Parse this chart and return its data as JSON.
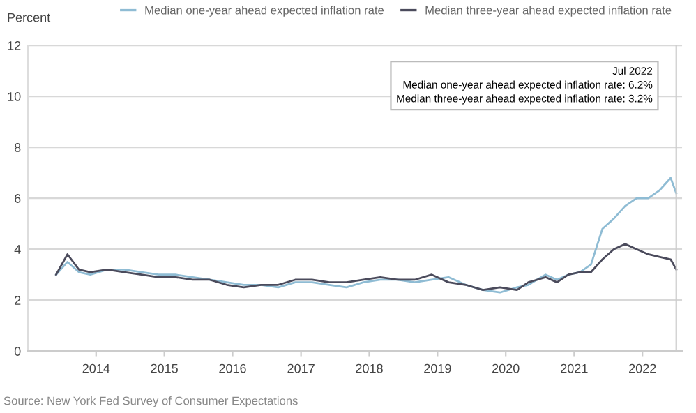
{
  "chart_data": {
    "type": "line",
    "ylabel": "Percent",
    "x": [
      "2013-06",
      "2013-08",
      "2013-10",
      "2013-12",
      "2014-03",
      "2014-06",
      "2014-09",
      "2014-12",
      "2015-03",
      "2015-06",
      "2015-09",
      "2015-12",
      "2016-03",
      "2016-06",
      "2016-09",
      "2016-12",
      "2017-03",
      "2017-06",
      "2017-09",
      "2017-12",
      "2018-03",
      "2018-06",
      "2018-09",
      "2018-12",
      "2019-03",
      "2019-06",
      "2019-09",
      "2019-12",
      "2020-03",
      "2020-05",
      "2020-08",
      "2020-10",
      "2020-12",
      "2021-02",
      "2021-04",
      "2021-06",
      "2021-08",
      "2021-10",
      "2021-12",
      "2022-02",
      "2022-04",
      "2022-06",
      "2022-07"
    ],
    "series": [
      {
        "name": "Median one-year ahead expected inflation rate",
        "color": "#8fbcd4",
        "values": [
          3.0,
          3.5,
          3.1,
          3.0,
          3.2,
          3.2,
          3.1,
          3.0,
          3.0,
          2.9,
          2.8,
          2.7,
          2.6,
          2.6,
          2.5,
          2.7,
          2.7,
          2.6,
          2.5,
          2.7,
          2.8,
          2.8,
          2.7,
          2.8,
          2.9,
          2.6,
          2.4,
          2.3,
          2.5,
          2.6,
          3.0,
          2.8,
          3.0,
          3.1,
          3.4,
          4.8,
          5.2,
          5.7,
          6.0,
          6.0,
          6.3,
          6.8,
          6.2
        ]
      },
      {
        "name": "Median three-year ahead expected inflation rate",
        "color": "#4b4b5c",
        "values": [
          3.0,
          3.8,
          3.2,
          3.1,
          3.2,
          3.1,
          3.0,
          2.9,
          2.9,
          2.8,
          2.8,
          2.6,
          2.5,
          2.6,
          2.6,
          2.8,
          2.8,
          2.7,
          2.7,
          2.8,
          2.9,
          2.8,
          2.8,
          3.0,
          2.7,
          2.6,
          2.4,
          2.5,
          2.4,
          2.7,
          2.9,
          2.7,
          3.0,
          3.1,
          3.1,
          3.6,
          4.0,
          4.2,
          4.0,
          3.8,
          3.7,
          3.6,
          3.2
        ]
      }
    ],
    "xlim": [
      "2013-01",
      "2022-08"
    ],
    "xticks": [
      "2014",
      "2015",
      "2016",
      "2017",
      "2018",
      "2019",
      "2020",
      "2021",
      "2022"
    ],
    "ylim": [
      0,
      12
    ],
    "yticks": [
      0,
      2,
      4,
      6,
      8,
      10,
      12
    ],
    "grid": "y",
    "legend": "top",
    "marker": "none",
    "line_style": "solid",
    "ref_lines": [
      {
        "axis": "x",
        "value": "2022-07",
        "color": "#cccccc"
      }
    ],
    "annotations": [
      "Jul 2022",
      "Median one-year ahead expected inflation rate: 6.2%",
      "Median three-year ahead expected inflation rate: 3.2%",
      "Source: New York Fed Survey of Consumer Expectations"
    ]
  }
}
